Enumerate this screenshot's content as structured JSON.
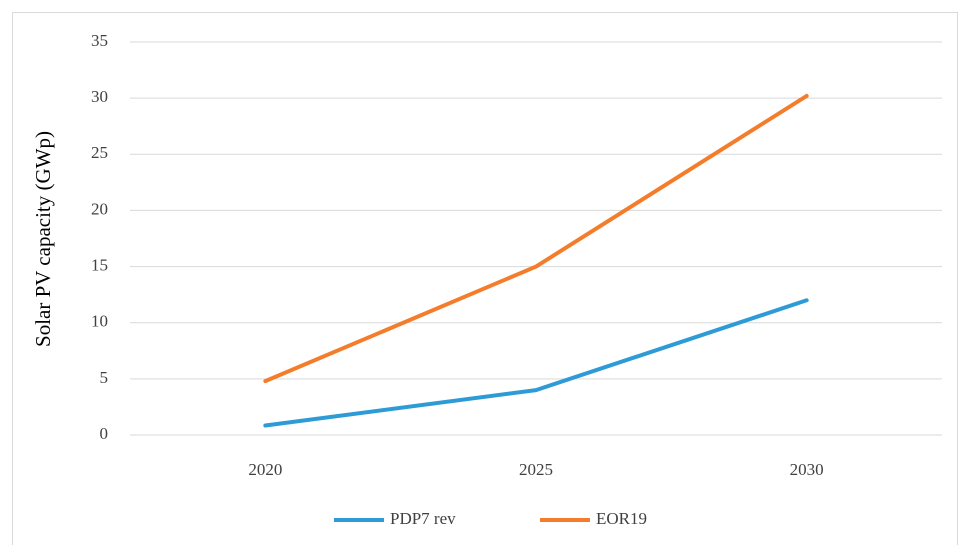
{
  "chart_data": {
    "type": "line",
    "y_label": "Solar PV capacity (GWp)",
    "categories": [
      "2020",
      "2025",
      "2030"
    ],
    "series": [
      {
        "name": "PDP7 rev",
        "color": "#2e9bd6",
        "values": [
          0.85,
          4,
          12
        ]
      },
      {
        "name": "EOR19",
        "color": "#f47d2c",
        "values": [
          4.8,
          15,
          30.2
        ]
      }
    ],
    "ylim": [
      0,
      35
    ],
    "yticks": [
      0,
      5,
      10,
      15,
      20,
      25,
      30,
      35
    ],
    "grid": true,
    "legend": "bottom"
  }
}
